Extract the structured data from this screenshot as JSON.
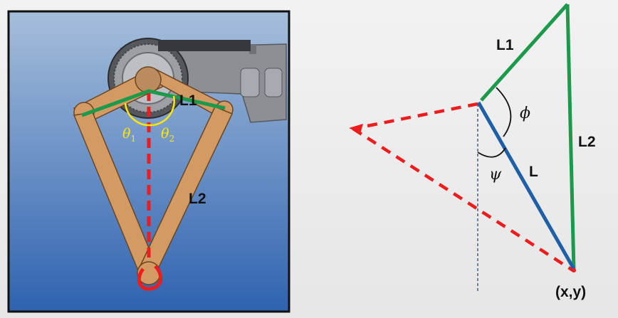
{
  "left_panel": {
    "label_l1": "L1",
    "label_l2": "L2",
    "theta1_symbol": "θ",
    "theta1_sub": "1",
    "theta2_symbol": "θ",
    "theta2_sub": "2"
  },
  "right_panel": {
    "label_l1": "L1",
    "label_l2": "L2",
    "label_l": "L",
    "phi": "ϕ",
    "psi": "ψ",
    "endpoint": "(x,y)"
  },
  "colors": {
    "link_green": "#1a9a4a",
    "link_blue": "#1f5fa8",
    "dashed_red": "#ee1c1c",
    "arm_tan": "#d39a63",
    "angle_yellow": "#ffe600"
  }
}
